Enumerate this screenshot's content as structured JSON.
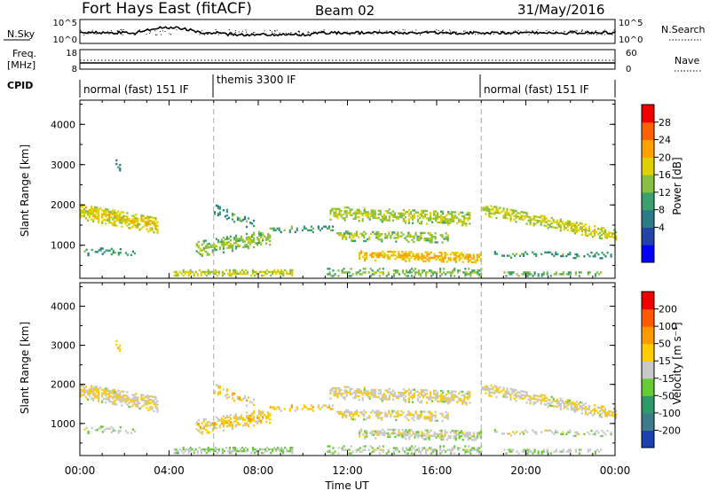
{
  "header": {
    "station": "Fort Hays East (fitACF)",
    "beam": "Beam 02",
    "date": "31/May/2016"
  },
  "strip": {
    "nsky_label": "N.Sky",
    "nsky_ticks": [
      "10^5",
      "10^0"
    ],
    "nsearch_label": "N.Search",
    "nsearch_ticks": [
      "10^5",
      "10^0"
    ],
    "freq_label_1": "Freq.",
    "freq_label_2": "[MHz]",
    "freq_ticks": [
      "18",
      "8"
    ],
    "nave_label": "Nave",
    "nave_ticks": [
      "60",
      "0"
    ],
    "cpid_label": "CPID",
    "cpid_modes": [
      {
        "name": "normal (fast) 151 IF",
        "start_hour": 0,
        "end_hour": 6
      },
      {
        "name": "themis 3300 IF",
        "start_hour": 6,
        "end_hour": 18
      },
      {
        "name": "normal (fast) 151 IF",
        "start_hour": 18,
        "end_hour": 24
      }
    ]
  },
  "axes": {
    "xlabel": "Time UT",
    "x_ticks": [
      "00:00",
      "04:00",
      "08:00",
      "12:00",
      "16:00",
      "20:00",
      "00:00"
    ],
    "ylabel_top": "Slant Range [km]",
    "ylabel_bottom": "Slant Range [km]",
    "y_ticks": [
      "4000",
      "3000",
      "2000",
      "1000"
    ]
  },
  "power_colorbar": {
    "label": "Power [dB]",
    "ticks": [
      "28",
      "24",
      "20",
      "16",
      "12",
      "8",
      "4"
    ],
    "colors": [
      "#0000ff",
      "#2244aa",
      "#2a7a8a",
      "#3aa070",
      "#88c040",
      "#e0d000",
      "#ffa000",
      "#ff6000",
      "#ee0000"
    ]
  },
  "velocity_colorbar": {
    "label": "Velocity [m s⁻¹]",
    "ticks": [
      "200",
      "100",
      "50",
      "15",
      "-15",
      "-50",
      "-100",
      "-200"
    ],
    "colors": [
      "#1a3fb0",
      "#3d7a8a",
      "#2e9a6a",
      "#66cc33",
      "#c8c8c8",
      "#ffcc00",
      "#ff9900",
      "#ff5a00",
      "#ee0000"
    ]
  },
  "chart_data": [
    {
      "type": "heatmap",
      "title": "Power",
      "xlabel": "Time UT",
      "ylabel": "Slant Range [km]",
      "xlim": [
        0,
        24
      ],
      "ylim": [
        180,
        4600
      ],
      "colorbar_range": [
        0,
        30
      ],
      "regions": [
        {
          "t0": 0.0,
          "t1": 3.5,
          "r_center": [
            1850,
            1500
          ],
          "r_halfwidth": 200,
          "density": 0.85,
          "value": 17
        },
        {
          "t0": 0.1,
          "t1": 2.5,
          "r_center": [
            850,
            800
          ],
          "r_halfwidth": 90,
          "density": 0.35,
          "value": 10
        },
        {
          "t0": 1.6,
          "t1": 1.9,
          "r_center": [
            3050,
            2750
          ],
          "r_halfwidth": 120,
          "density": 0.4,
          "value": 9
        },
        {
          "t0": 5.2,
          "t1": 8.5,
          "r_center": [
            900,
            1200
          ],
          "r_halfwidth": 180,
          "density": 0.6,
          "value": 14
        },
        {
          "t0": 6.0,
          "t1": 7.8,
          "r_center": [
            1900,
            1500
          ],
          "r_halfwidth": 120,
          "density": 0.45,
          "value": 10
        },
        {
          "t0": 4.2,
          "t1": 9.5,
          "r_center": [
            320,
            320
          ],
          "r_halfwidth": 70,
          "density": 0.8,
          "value": 16
        },
        {
          "t0": 8.5,
          "t1": 11.5,
          "r_center": [
            1400,
            1400
          ],
          "r_halfwidth": 70,
          "density": 0.4,
          "value": 11
        },
        {
          "t0": 11.2,
          "t1": 17.5,
          "r_center": [
            1800,
            1650
          ],
          "r_halfwidth": 160,
          "density": 0.7,
          "value": 15
        },
        {
          "t0": 11.5,
          "t1": 16.5,
          "r_center": [
            1250,
            1200
          ],
          "r_halfwidth": 130,
          "density": 0.6,
          "value": 14
        },
        {
          "t0": 12.5,
          "t1": 18.0,
          "r_center": [
            750,
            700
          ],
          "r_halfwidth": 120,
          "density": 0.75,
          "value": 19
        },
        {
          "t0": 11.0,
          "t1": 18.0,
          "r_center": [
            330,
            330
          ],
          "r_halfwidth": 90,
          "density": 0.5,
          "value": 13
        },
        {
          "t0": 18.0,
          "t1": 24.0,
          "r_center": [
            1900,
            1250
          ],
          "r_halfwidth": 150,
          "density": 0.75,
          "value": 16
        },
        {
          "t0": 18.5,
          "t1": 24.0,
          "r_center": [
            780,
            760
          ],
          "r_halfwidth": 80,
          "density": 0.35,
          "value": 10
        },
        {
          "t0": 19.0,
          "t1": 23.5,
          "r_center": [
            300,
            300
          ],
          "r_halfwidth": 60,
          "density": 0.4,
          "value": 12
        }
      ]
    },
    {
      "type": "heatmap",
      "title": "Velocity",
      "xlabel": "Time UT",
      "ylabel": "Slant Range [km]",
      "xlim": [
        0,
        24
      ],
      "ylim": [
        180,
        4600
      ],
      "colorbar_range": [
        -250,
        250
      ],
      "regions": [
        {
          "t0": 0.0,
          "t1": 3.5,
          "r_center": [
            1850,
            1500
          ],
          "r_halfwidth": 200,
          "density": 0.85,
          "value": 0
        },
        {
          "t0": 0.1,
          "t1": 2.5,
          "r_center": [
            850,
            800
          ],
          "r_halfwidth": 90,
          "density": 0.35,
          "value": -30
        },
        {
          "t0": 1.6,
          "t1": 1.9,
          "r_center": [
            3050,
            2750
          ],
          "r_halfwidth": 120,
          "density": 0.4,
          "value": 70
        },
        {
          "t0": 5.2,
          "t1": 8.5,
          "r_center": [
            900,
            1200
          ],
          "r_halfwidth": 180,
          "density": 0.6,
          "value": 30
        },
        {
          "t0": 6.0,
          "t1": 7.8,
          "r_center": [
            1900,
            1500
          ],
          "r_halfwidth": 120,
          "density": 0.45,
          "value": 30
        },
        {
          "t0": 4.2,
          "t1": 9.5,
          "r_center": [
            320,
            320
          ],
          "r_halfwidth": 70,
          "density": 0.8,
          "value": -40
        },
        {
          "t0": 8.5,
          "t1": 11.5,
          "r_center": [
            1400,
            1400
          ],
          "r_halfwidth": 70,
          "density": 0.4,
          "value": 40
        },
        {
          "t0": 11.2,
          "t1": 17.5,
          "r_center": [
            1800,
            1650
          ],
          "r_halfwidth": 160,
          "density": 0.7,
          "value": 0
        },
        {
          "t0": 11.5,
          "t1": 16.5,
          "r_center": [
            1250,
            1200
          ],
          "r_halfwidth": 130,
          "density": 0.6,
          "value": 0
        },
        {
          "t0": 12.5,
          "t1": 18.0,
          "r_center": [
            750,
            700
          ],
          "r_halfwidth": 120,
          "density": 0.75,
          "value": -20
        },
        {
          "t0": 11.0,
          "t1": 18.0,
          "r_center": [
            330,
            330
          ],
          "r_halfwidth": 90,
          "density": 0.5,
          "value": -40
        },
        {
          "t0": 18.0,
          "t1": 24.0,
          "r_center": [
            1900,
            1250
          ],
          "r_halfwidth": 150,
          "density": 0.75,
          "value": 0
        },
        {
          "t0": 18.5,
          "t1": 24.0,
          "r_center": [
            780,
            760
          ],
          "r_halfwidth": 80,
          "density": 0.35,
          "value": -20
        },
        {
          "t0": 19.0,
          "t1": 23.5,
          "r_center": [
            300,
            300
          ],
          "r_halfwidth": 60,
          "density": 0.4,
          "value": -40
        }
      ]
    }
  ]
}
